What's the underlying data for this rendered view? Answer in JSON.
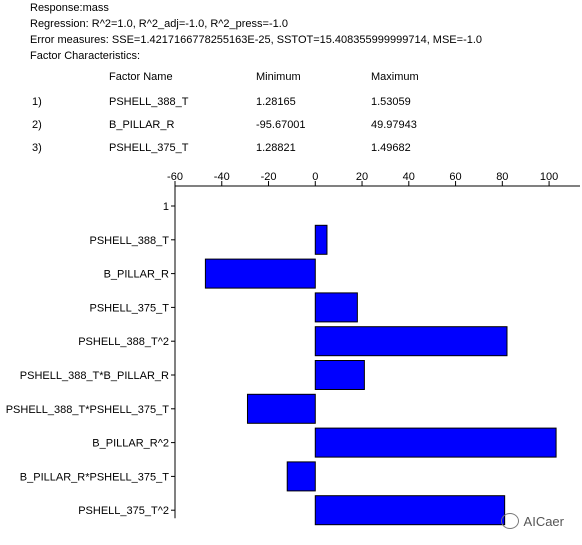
{
  "header": {
    "response": "Response:mass",
    "regression": "Regression: R^2=1.0, R^2_adj=-1.0, R^2_press=-1.0",
    "error_measures": "Error measures: SSE=1.4217166778255163E-25, SSTOT=15.408355999999714, MSE=-1.0",
    "factor_characteristics": "Factor Characteristics:"
  },
  "factor_table": {
    "columns": [
      "Factor Name",
      "Minimum",
      "Maximum"
    ],
    "rows": [
      {
        "index": "1)",
        "name": "PSHELL_388_T",
        "min": "1.28165",
        "max": "1.53059"
      },
      {
        "index": "2)",
        "name": "B_PILLAR_R",
        "min": "-95.67001",
        "max": "49.97943"
      },
      {
        "index": "3)",
        "name": "PSHELL_375_T",
        "min": "1.28821",
        "max": "1.49682"
      }
    ]
  },
  "chart_data": {
    "type": "bar",
    "orientation": "horizontal",
    "categories": [
      "1",
      "PSHELL_388_T",
      "B_PILLAR_R",
      "PSHELL_375_T",
      "PSHELL_388_T^2",
      "PSHELL_388_T*B_PILLAR_R",
      "PSHELL_388_T*PSHELL_375_T",
      "B_PILLAR_R^2",
      "B_PILLAR_R*PSHELL_375_T",
      "PSHELL_375_T^2"
    ],
    "values": [
      0,
      5,
      -47,
      18,
      82,
      21,
      -29,
      103,
      -12,
      81
    ],
    "xlim": [
      -60,
      110
    ],
    "xticks": [
      -60,
      -40,
      -20,
      0,
      20,
      40,
      60,
      80,
      100
    ],
    "bar_color": "#0000ff",
    "grid": false,
    "axis_position": "top"
  },
  "watermark": {
    "text": "AICaer"
  }
}
